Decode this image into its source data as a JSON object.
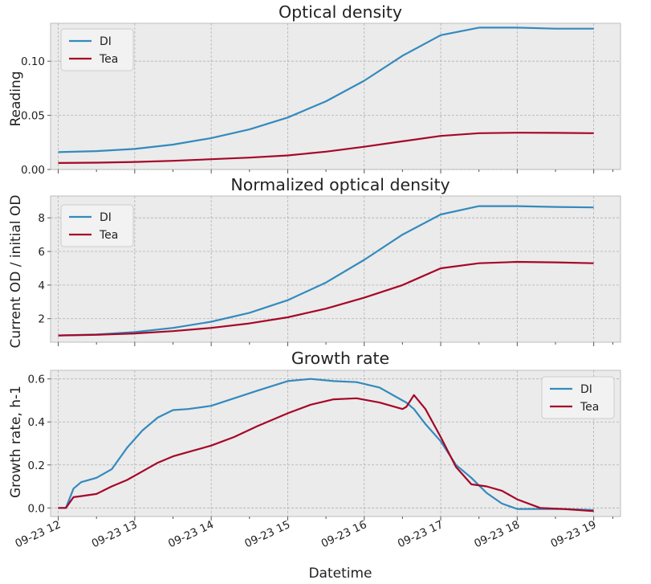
{
  "chart_data": [
    {
      "type": "line",
      "title": "Optical density",
      "xlabel": "",
      "ylabel": "Reading",
      "ylim": [
        0.0,
        0.135
      ],
      "yticks": [
        0.0,
        0.05,
        0.1
      ],
      "ytick_labels": [
        "0.00",
        "0.05",
        "0.10"
      ],
      "legend": "top-left",
      "grid": true,
      "x": [
        12.0,
        12.5,
        13.0,
        13.5,
        14.0,
        14.5,
        15.0,
        15.5,
        16.0,
        16.5,
        17.0,
        17.5,
        18.0,
        18.5,
        19.0
      ],
      "series": [
        {
          "name": "DI",
          "color": "#348ABD",
          "values": [
            0.016,
            0.017,
            0.019,
            0.023,
            0.029,
            0.037,
            0.048,
            0.063,
            0.082,
            0.105,
            0.124,
            0.131,
            0.131,
            0.13,
            0.13
          ]
        },
        {
          "name": "Tea",
          "color": "#A60628",
          "values": [
            0.006,
            0.0063,
            0.007,
            0.008,
            0.0095,
            0.011,
            0.013,
            0.0165,
            0.021,
            0.026,
            0.031,
            0.0335,
            0.034,
            0.0338,
            0.0335
          ]
        }
      ]
    },
    {
      "type": "line",
      "title": "Normalized optical density",
      "xlabel": "",
      "ylabel": "Current OD / initial OD",
      "ylim": [
        0.6,
        9.3
      ],
      "yticks": [
        2,
        4,
        6,
        8
      ],
      "ytick_labels": [
        "2",
        "4",
        "6",
        "8"
      ],
      "legend": "top-left",
      "grid": true,
      "x": [
        12.0,
        12.5,
        13.0,
        13.5,
        14.0,
        14.5,
        15.0,
        15.5,
        16.0,
        16.5,
        17.0,
        17.5,
        18.0,
        18.5,
        19.0
      ],
      "series": [
        {
          "name": "DI",
          "color": "#348ABD",
          "values": [
            1.0,
            1.06,
            1.2,
            1.45,
            1.82,
            2.35,
            3.1,
            4.15,
            5.5,
            7.0,
            8.2,
            8.7,
            8.7,
            8.65,
            8.62
          ]
        },
        {
          "name": "Tea",
          "color": "#A60628",
          "values": [
            1.0,
            1.04,
            1.12,
            1.26,
            1.45,
            1.72,
            2.08,
            2.6,
            3.25,
            4.0,
            5.0,
            5.3,
            5.38,
            5.35,
            5.3
          ]
        }
      ]
    },
    {
      "type": "line",
      "title": "Growth rate",
      "xlabel": "Datetime",
      "ylabel": "Growth rate, h-1",
      "ylim": [
        -0.04,
        0.64
      ],
      "yticks": [
        0.0,
        0.2,
        0.4,
        0.6
      ],
      "ytick_labels": [
        "0.0",
        "0.2",
        "0.4",
        "0.6"
      ],
      "legend": "top-right",
      "grid": true,
      "xticks": [
        12,
        13,
        14,
        15,
        16,
        17,
        18,
        19
      ],
      "xtick_labels": [
        "09-23 12",
        "09-23 13",
        "09-23 14",
        "09-23 15",
        "09-23 16",
        "09-23 17",
        "09-23 18",
        "09-23 19"
      ],
      "x": [
        12.0,
        12.1,
        12.2,
        12.3,
        12.5,
        12.7,
        12.9,
        13.1,
        13.3,
        13.5,
        13.7,
        14.0,
        14.3,
        14.6,
        15.0,
        15.3,
        15.6,
        15.9,
        16.2,
        16.5,
        16.55,
        16.65,
        16.8,
        17.0,
        17.2,
        17.4,
        17.6,
        17.8,
        18.0,
        18.3,
        18.6,
        19.0
      ],
      "series": [
        {
          "name": "DI",
          "color": "#348ABD",
          "values": [
            0.0,
            0.0,
            0.09,
            0.12,
            0.14,
            0.18,
            0.28,
            0.36,
            0.42,
            0.455,
            0.46,
            0.475,
            0.51,
            0.545,
            0.59,
            0.6,
            0.59,
            0.585,
            0.56,
            0.5,
            0.49,
            0.46,
            0.39,
            0.31,
            0.2,
            0.14,
            0.07,
            0.02,
            -0.005,
            -0.005,
            -0.005,
            -0.01
          ]
        },
        {
          "name": "Tea",
          "color": "#A60628",
          "values": [
            0.0,
            0.0,
            0.05,
            0.055,
            0.065,
            0.1,
            0.13,
            0.17,
            0.21,
            0.24,
            0.26,
            0.29,
            0.33,
            0.38,
            0.44,
            0.48,
            0.505,
            0.51,
            0.49,
            0.46,
            0.47,
            0.525,
            0.46,
            0.33,
            0.19,
            0.11,
            0.1,
            0.08,
            0.04,
            0.0,
            -0.005,
            -0.015
          ]
        }
      ]
    }
  ]
}
